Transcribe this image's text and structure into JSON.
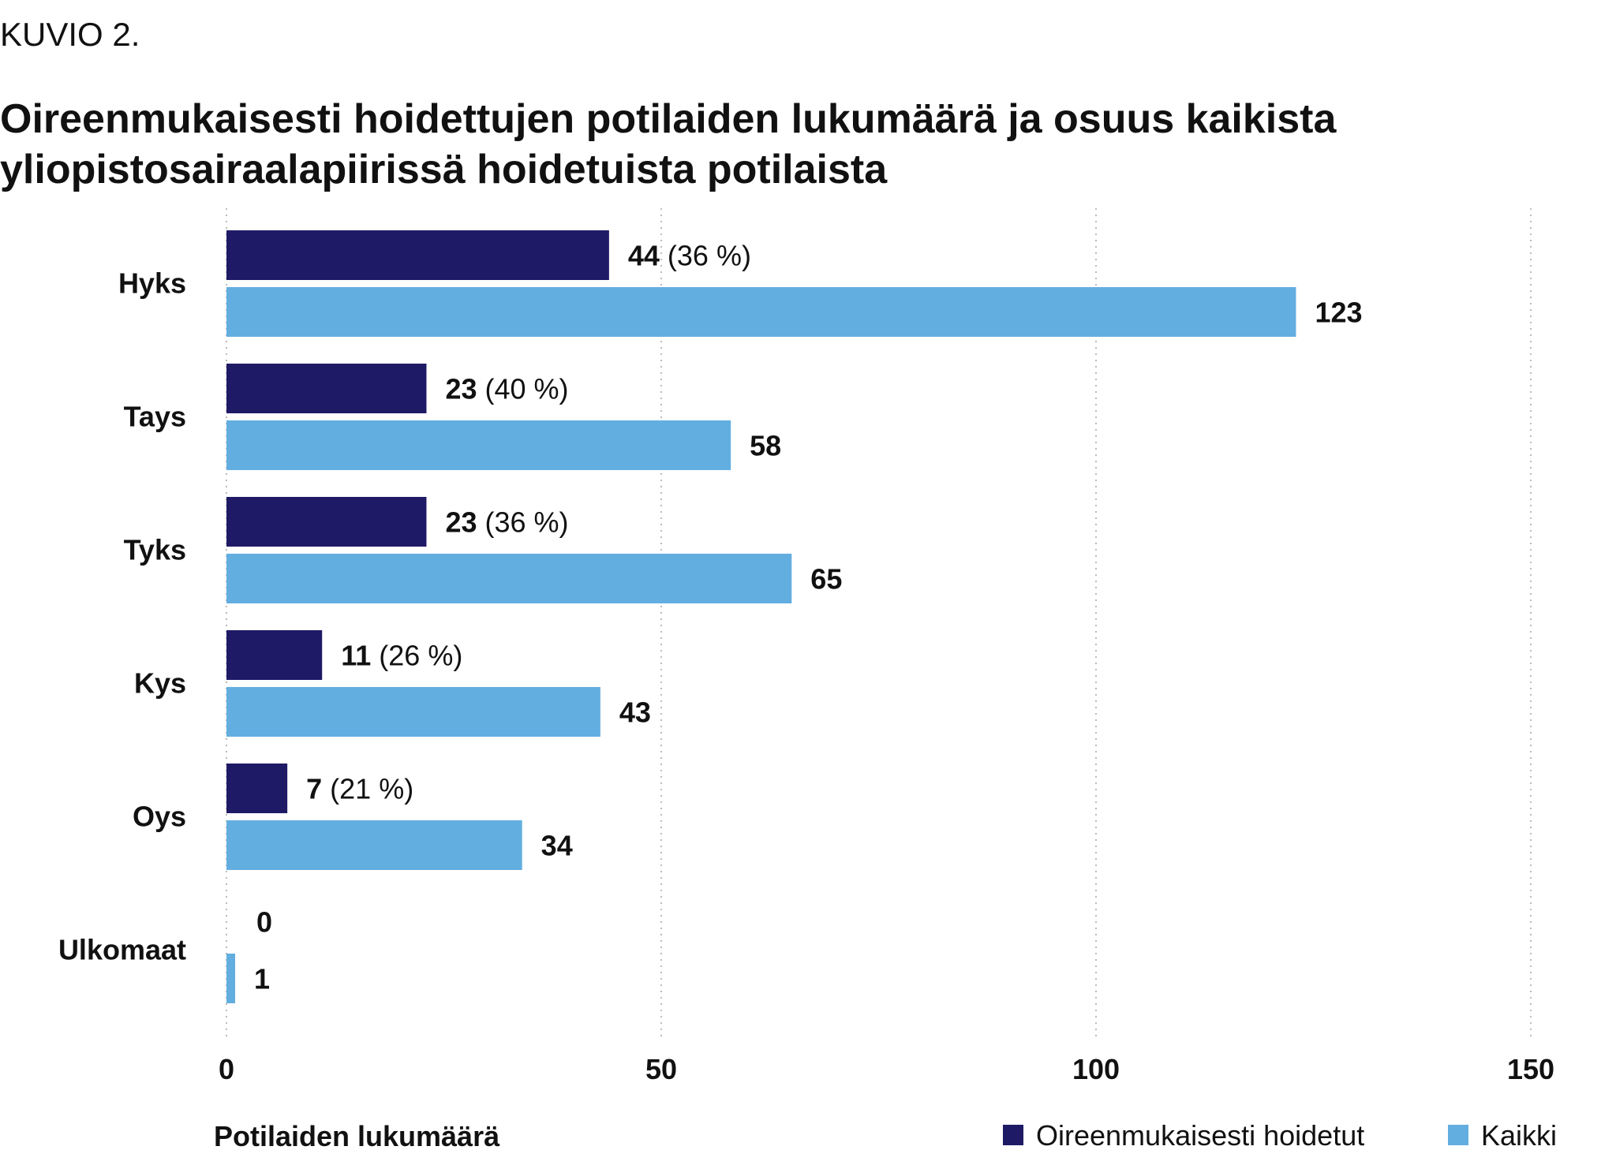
{
  "figure_label": "KUVIO 2.",
  "chart_data": {
    "type": "bar",
    "orientation": "horizontal",
    "title": "Oireenmukaisesti hoidettujen potilaiden lukumäärä ja osuus kaikista yliopistosairaalapiirissä hoidetuista potilaista",
    "title_lines": [
      "Oireenmukaisesti hoidettujen potilaiden lukumäärä ja osuus kaikista",
      "yliopistosairaalapiirissä hoidetuista potilaista"
    ],
    "categories": [
      "Hyks",
      "Tays",
      "Tyks",
      "Kys",
      "Oys",
      "Ulkomaat"
    ],
    "series": [
      {
        "name": "Oireenmukaisesti hoidetut",
        "color": "#1f1a66",
        "values": [
          44,
          23,
          23,
          11,
          7,
          0
        ],
        "share_labels": [
          "(36 %)",
          "(40 %)",
          "(36 %)",
          "(26 %)",
          "(21 %)",
          ""
        ]
      },
      {
        "name": "Kaikki",
        "color": "#63aee0",
        "values": [
          123,
          58,
          65,
          43,
          34,
          1
        ]
      }
    ],
    "xlabel": "Potilaiden lukumäärä",
    "xlim": [
      0,
      150
    ],
    "xticks": [
      0,
      50,
      100,
      150
    ],
    "grid": "vertical dotted",
    "legend_position": "bottom-right"
  }
}
